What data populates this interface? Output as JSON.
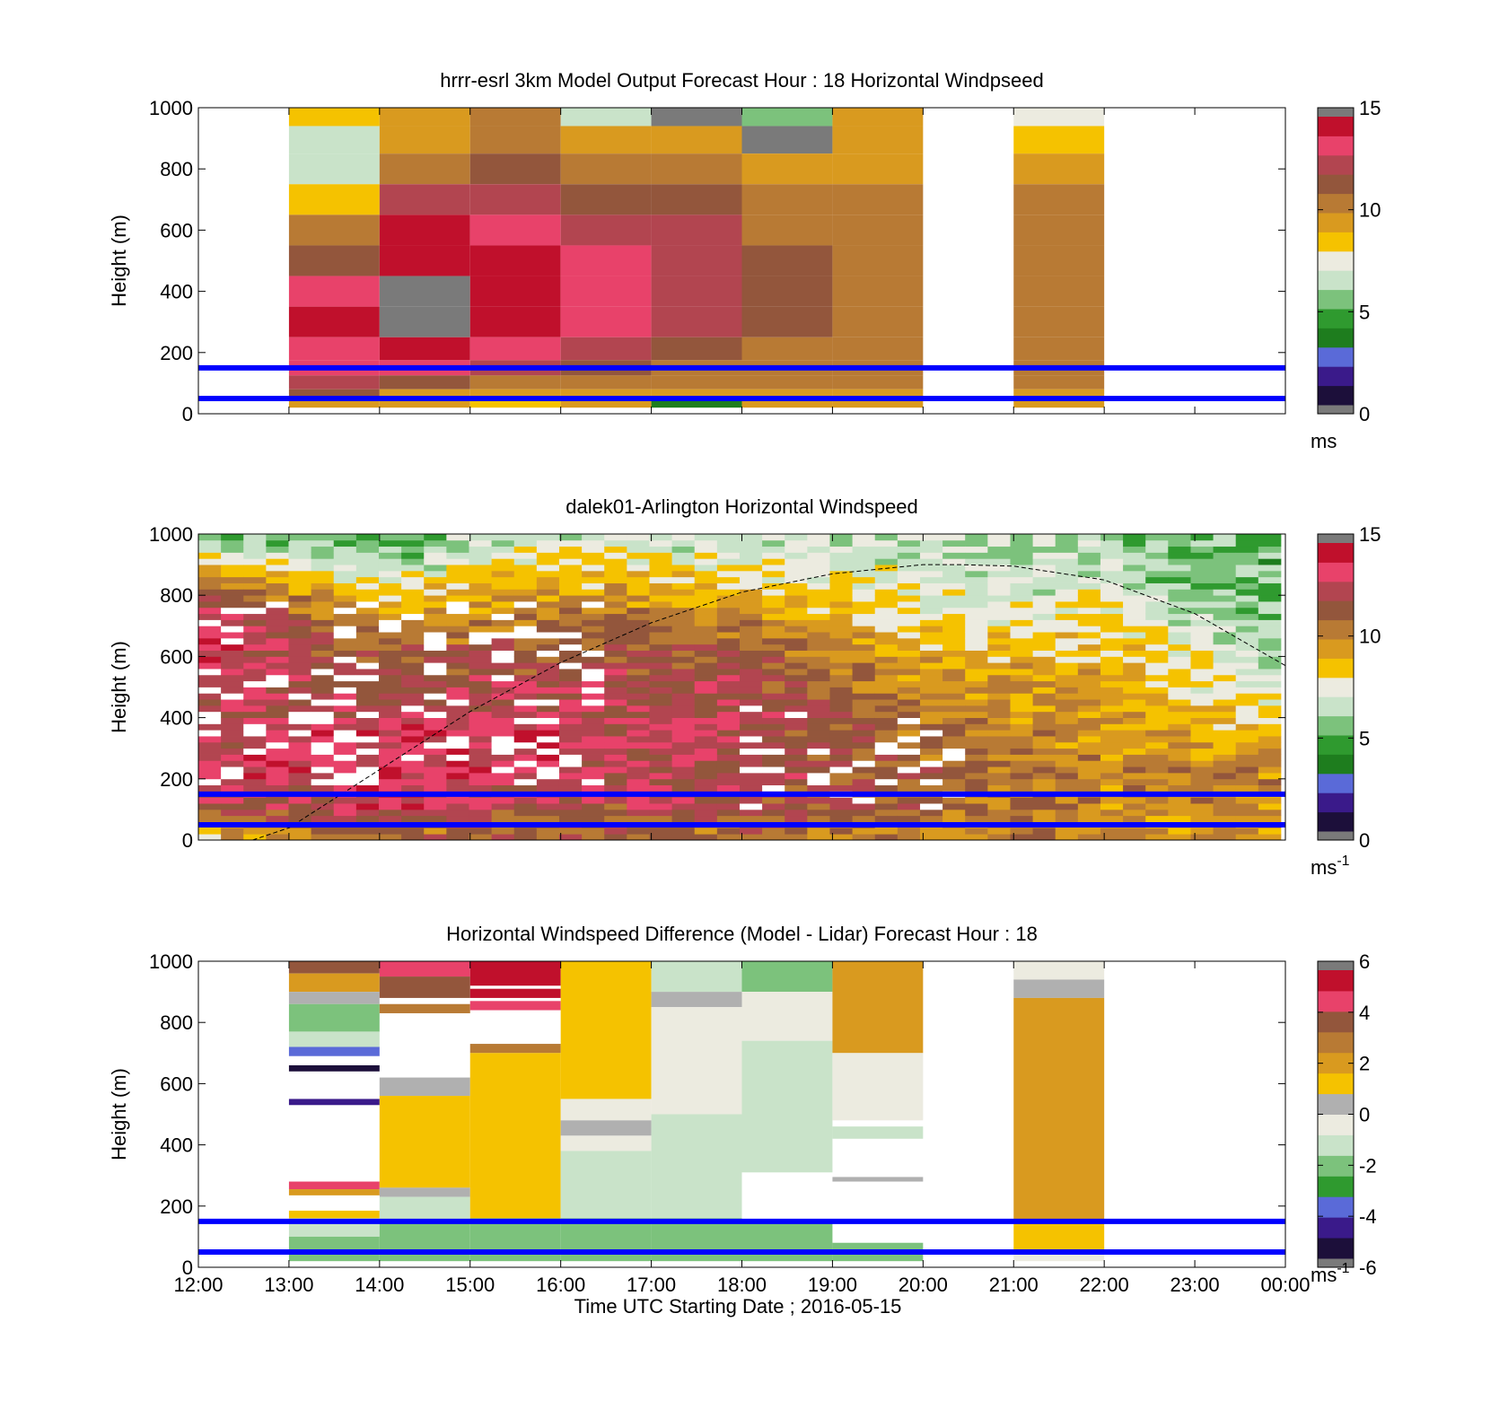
{
  "figure": {
    "xlabel": "Time UTC  Starting Date ; 2016-05-15",
    "xticks": [
      "12:00",
      "13:00",
      "14:00",
      "15:00",
      "16:00",
      "17:00",
      "18:00",
      "19:00",
      "20:00",
      "21:00",
      "22:00",
      "23:00",
      "00:00"
    ]
  },
  "colors": {
    "ws_scale": [
      "#1c0f3a",
      "#3a1a8a",
      "#5a6ad8",
      "#1e7d1e",
      "#2f9a2f",
      "#7cc27c",
      "#c9e3c9",
      "#ecebe0",
      "#f5c200",
      "#d99a1f",
      "#b87a34",
      "#93563c",
      "#b24550",
      "#e8426a",
      "#c0102c",
      "#7a7a7a"
    ],
    "diff_scale": [
      "#1c0f3a",
      "#3a1a8a",
      "#5a6ad8",
      "#2f9a2f",
      "#7cc27c",
      "#c9e3c9",
      "#ecebe0",
      "#b0b0b0",
      "#f5c200",
      "#d99a1f",
      "#b87a34",
      "#93563c",
      "#e8426a",
      "#c0102c",
      "#7a7a7a"
    ],
    "band_line": "#0000ff"
  },
  "chart_data": [
    {
      "type": "heatmap",
      "title": "hrrr-esrl 3km Model Output   Forecast Hour : 18 Horizontal Windpseed",
      "ylabel": "Height (m)",
      "yticks": [
        "0",
        "200",
        "400",
        "600",
        "800",
        "1000"
      ],
      "ylim": [
        0,
        1000
      ],
      "x_range_hours": [
        12,
        24
      ],
      "colorbar": {
        "ticks": [
          "0",
          "5",
          "10",
          "15"
        ],
        "range": [
          0,
          15
        ],
        "unit": "ms"
      },
      "band_heights": [
        50,
        150
      ],
      "columns": [
        {
          "start_hour": 13,
          "end_hour": 14,
          "levels": [
            [
              980,
              8
            ],
            [
              900,
              6.5
            ],
            [
              800,
              6.5
            ],
            [
              700,
              8.5
            ],
            [
              600,
              10
            ],
            [
              500,
              11.5
            ],
            [
              400,
              13
            ],
            [
              300,
              14.5
            ],
            [
              200,
              13.5
            ],
            [
              150,
              13
            ],
            [
              100,
              12
            ],
            [
              60,
              11
            ],
            [
              30,
              9
            ]
          ]
        },
        {
          "start_hour": 14,
          "end_hour": 15,
          "levels": [
            [
              980,
              9.5
            ],
            [
              900,
              9.5
            ],
            [
              800,
              10.5
            ],
            [
              700,
              12.5
            ],
            [
              600,
              14
            ],
            [
              500,
              15
            ],
            [
              400,
              15.5
            ],
            [
              300,
              15.5
            ],
            [
              200,
              14
            ],
            [
              150,
              13.5
            ],
            [
              100,
              11
            ],
            [
              60,
              9
            ],
            [
              30,
              9.5
            ]
          ]
        },
        {
          "start_hour": 15,
          "end_hour": 16,
          "levels": [
            [
              980,
              10.5
            ],
            [
              900,
              10.5
            ],
            [
              800,
              11.5
            ],
            [
              700,
              12.5
            ],
            [
              600,
              13.5
            ],
            [
              500,
              14
            ],
            [
              400,
              14.5
            ],
            [
              300,
              14.5
            ],
            [
              200,
              13.5
            ],
            [
              150,
              12
            ],
            [
              100,
              10.5
            ],
            [
              60,
              9
            ],
            [
              30,
              8
            ]
          ]
        },
        {
          "start_hour": 16,
          "end_hour": 17,
          "levels": [
            [
              980,
              6.5
            ],
            [
              900,
              9.5
            ],
            [
              800,
              10.5
            ],
            [
              700,
              11
            ],
            [
              600,
              12
            ],
            [
              500,
              13
            ],
            [
              400,
              13
            ],
            [
              300,
              13
            ],
            [
              200,
              12
            ],
            [
              150,
              11
            ],
            [
              100,
              10
            ],
            [
              60,
              9
            ],
            [
              30,
              9
            ]
          ]
        },
        {
          "start_hour": 17,
          "end_hour": 18,
          "levels": [
            [
              980,
              15.5
            ],
            [
              900,
              9.5
            ],
            [
              800,
              10.5
            ],
            [
              700,
              11
            ],
            [
              600,
              12
            ],
            [
              500,
              12.5
            ],
            [
              400,
              12.5
            ],
            [
              300,
              12.5
            ],
            [
              200,
              11.5
            ],
            [
              150,
              10.5
            ],
            [
              100,
              10
            ],
            [
              60,
              9.5
            ],
            [
              30,
              3
            ]
          ]
        },
        {
          "start_hour": 18,
          "end_hour": 19,
          "levels": [
            [
              980,
              5.5
            ],
            [
              900,
              15.5
            ],
            [
              800,
              9.5
            ],
            [
              700,
              10.5
            ],
            [
              600,
              10.5
            ],
            [
              500,
              11
            ],
            [
              400,
              11
            ],
            [
              300,
              11
            ],
            [
              200,
              10.5
            ],
            [
              150,
              10.5
            ],
            [
              100,
              10
            ],
            [
              60,
              9.5
            ],
            [
              30,
              9
            ]
          ]
        },
        {
          "start_hour": 19,
          "end_hour": 20,
          "levels": [
            [
              980,
              9.5
            ],
            [
              900,
              9.5
            ],
            [
              800,
              9.8
            ],
            [
              700,
              10
            ],
            [
              600,
              10.3
            ],
            [
              500,
              10.5
            ],
            [
              400,
              10.5
            ],
            [
              300,
              10.5
            ],
            [
              200,
              10.3
            ],
            [
              150,
              10
            ],
            [
              100,
              10
            ],
            [
              60,
              9.8
            ],
            [
              30,
              9.5
            ]
          ]
        },
        {
          "start_hour": 21,
          "end_hour": 22,
          "levels": [
            [
              980,
              7.5
            ],
            [
              900,
              8.5
            ],
            [
              800,
              9.5
            ],
            [
              700,
              10
            ],
            [
              600,
              10.3
            ],
            [
              500,
              10.5
            ],
            [
              400,
              10.5
            ],
            [
              300,
              10.5
            ],
            [
              200,
              10.3
            ],
            [
              150,
              10
            ],
            [
              100,
              10
            ],
            [
              60,
              9.8
            ],
            [
              30,
              9.5
            ]
          ]
        }
      ]
    },
    {
      "type": "heatmap",
      "title": "dalek01-Arlington  Horizontal Windspeed",
      "ylabel": "Height (m)",
      "yticks": [
        "0",
        "200",
        "400",
        "600",
        "800",
        "1000"
      ],
      "ylim": [
        0,
        1000
      ],
      "x_range_hours": [
        12,
        24
      ],
      "colorbar": {
        "ticks": [
          "0",
          "5",
          "10",
          "15"
        ],
        "range": [
          0,
          15
        ],
        "unit": "ms",
        "unit_exponent": "-1"
      },
      "band_heights": [
        50,
        150
      ],
      "data_end_hour": 23.95,
      "time_bins": 48,
      "height_bins": 50,
      "profile_hours": [
        12,
        14,
        16,
        18,
        20,
        22,
        24
      ],
      "profile_levels": [
        25,
        100,
        250,
        400,
        550,
        700,
        850,
        975
      ],
      "profile_speeds": [
        [
          9,
          12,
          13,
          12,
          13,
          14,
          11,
          6
        ],
        [
          11,
          13,
          14,
          13,
          12,
          10,
          7,
          5
        ],
        [
          11,
          12,
          13,
          13,
          12,
          11,
          9,
          7
        ],
        [
          11,
          12,
          12.5,
          12.5,
          12,
          10.5,
          8,
          6.5
        ],
        [
          10,
          11,
          11,
          10.5,
          9.5,
          8,
          7,
          6.5
        ],
        [
          10,
          10,
          10,
          9.5,
          9,
          8,
          6.5,
          6
        ],
        [
          9.5,
          10,
          10,
          8,
          6.5,
          5.5,
          5,
          5
        ]
      ],
      "boundary_layer_height_line": {
        "hours": [
          12.6,
          13,
          14,
          15,
          16,
          17,
          18,
          19,
          20,
          20.4,
          21,
          22,
          23,
          24
        ],
        "heights": [
          0,
          40,
          230,
          420,
          580,
          710,
          810,
          870,
          900,
          900,
          895,
          850,
          740,
          570
        ]
      }
    },
    {
      "type": "heatmap",
      "title": "Horizontal Windspeed Difference (Model - Lidar) Forecast Hour : 18",
      "ylabel": "Height (m)",
      "yticks": [
        "0",
        "200",
        "400",
        "600",
        "800",
        "1000"
      ],
      "ylim": [
        0,
        1000
      ],
      "x_range_hours": [
        12,
        24
      ],
      "colorbar": {
        "ticks": [
          "-6",
          "-4",
          "-2",
          "0",
          "2",
          "4",
          "6"
        ],
        "range": [
          -6,
          6
        ],
        "unit": "ms",
        "unit_exponent": "-1"
      },
      "band_heights": [
        50,
        150
      ],
      "columns": [
        {
          "start_hour": 13,
          "end_hour": 14,
          "segments": [
            [
              960,
              1000,
              3.5
            ],
            [
              900,
              960,
              2
            ],
            [
              860,
              900,
              0.2
            ],
            [
              770,
              860,
              -2.5
            ],
            [
              720,
              770,
              -1.5
            ],
            [
              690,
              720,
              -4
            ],
            [
              640,
              660,
              -5.5
            ],
            [
              530,
              550,
              -5
            ],
            [
              255,
              280,
              4.5
            ],
            [
              235,
              255,
              2.5
            ],
            [
              160,
              185,
              1
            ],
            [
              100,
              160,
              -1.5
            ],
            [
              20,
              100,
              -2
            ]
          ]
        },
        {
          "start_hour": 14,
          "end_hour": 15,
          "segments": [
            [
              950,
              1000,
              5
            ],
            [
              880,
              950,
              4
            ],
            [
              830,
              860,
              3
            ],
            [
              560,
              620,
              0.8
            ],
            [
              260,
              560,
              1.5
            ],
            [
              230,
              260,
              0.1
            ],
            [
              150,
              230,
              -1.5
            ],
            [
              20,
              150,
              -2.5
            ]
          ]
        },
        {
          "start_hour": 15,
          "end_hour": 16,
          "segments": [
            [
              920,
              1000,
              6
            ],
            [
              880,
              910,
              6
            ],
            [
              840,
              870,
              5
            ],
            [
              700,
              730,
              3
            ],
            [
              160,
              700,
              1.5
            ],
            [
              20,
              160,
              -2
            ]
          ]
        },
        {
          "start_hour": 16,
          "end_hour": 17,
          "segments": [
            [
              550,
              1000,
              1
            ],
            [
              480,
              550,
              -0.3
            ],
            [
              430,
              480,
              0
            ],
            [
              380,
              430,
              -0.8
            ],
            [
              160,
              380,
              -1
            ],
            [
              20,
              160,
              -2.5
            ]
          ]
        },
        {
          "start_hour": 17,
          "end_hour": 18,
          "segments": [
            [
              900,
              1000,
              -1.5
            ],
            [
              850,
              900,
              0.1
            ],
            [
              500,
              850,
              -0.7
            ],
            [
              160,
              500,
              -1.2
            ],
            [
              20,
              160,
              -2.5
            ]
          ]
        },
        {
          "start_hour": 18,
          "end_hour": 19,
          "segments": [
            [
              900,
              1000,
              -2.5
            ],
            [
              740,
              900,
              -0.8
            ],
            [
              310,
              740,
              -1.5
            ],
            [
              20,
              150,
              -2.5
            ]
          ]
        },
        {
          "start_hour": 19,
          "end_hour": 20,
          "segments": [
            [
              700,
              1000,
              2
            ],
            [
              480,
              700,
              -0.8
            ],
            [
              420,
              460,
              -1.2
            ],
            [
              280,
              295,
              0
            ],
            [
              20,
              80,
              -2.5
            ]
          ]
        },
        {
          "start_hour": 21,
          "end_hour": 22,
          "segments": [
            [
              940,
              1000,
              -0.5
            ],
            [
              880,
              940,
              0.8
            ],
            [
              150,
              880,
              1.8
            ],
            [
              50,
              150,
              1
            ],
            [
              20,
              50,
              -0.3
            ]
          ]
        }
      ]
    }
  ]
}
